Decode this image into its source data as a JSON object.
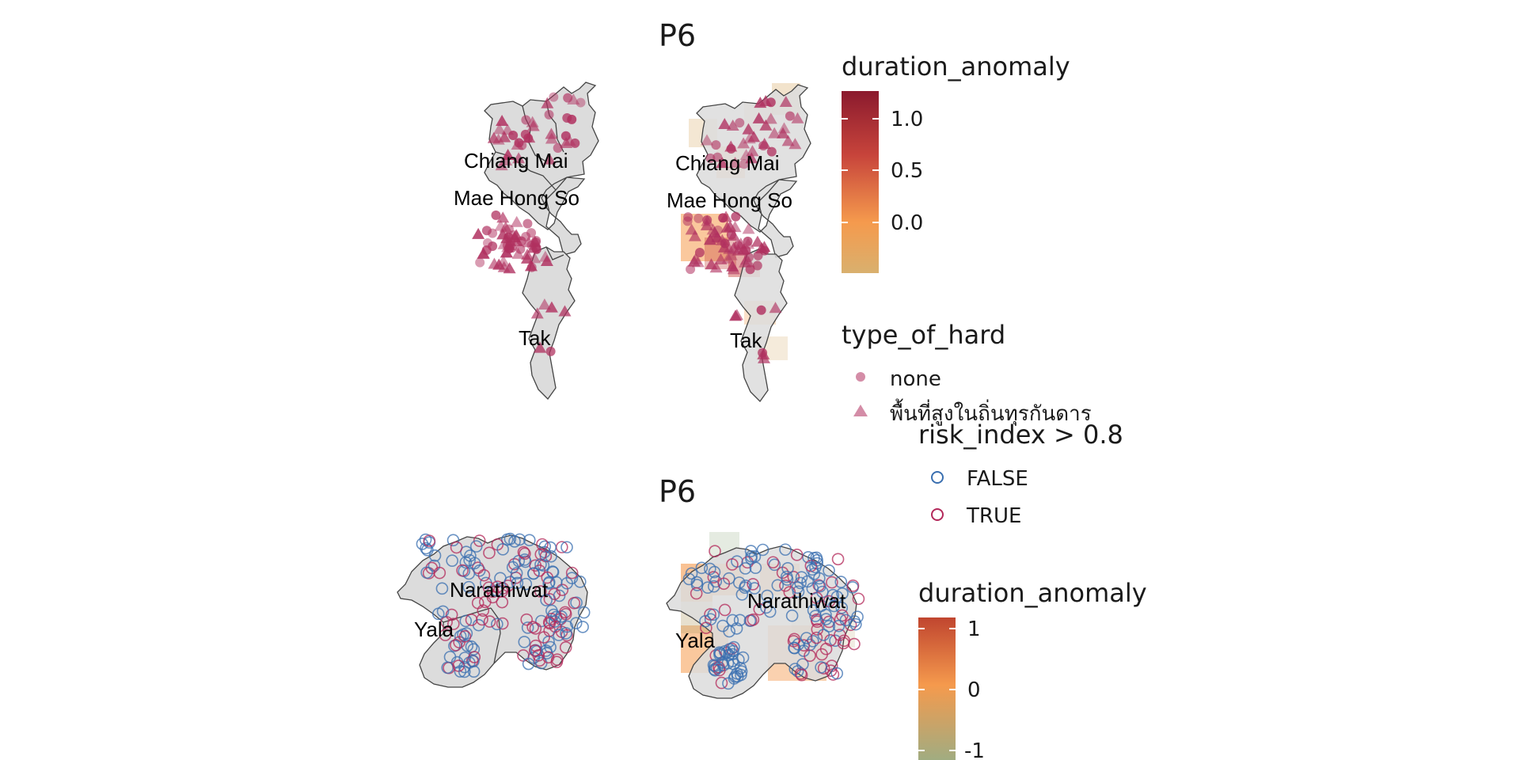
{
  "top_section": {
    "title": "P6",
    "province_labels": [
      "Chiang Mai",
      "Mae Hong So",
      "Tak"
    ],
    "legend_color": {
      "title": "duration_anomaly",
      "ticks": [
        "1.0",
        "0.5",
        "0.0"
      ],
      "colors": [
        "#8b1a2e",
        "#c7443b",
        "#f59a4d",
        "#d9b06e"
      ]
    },
    "legend_shape": {
      "title": "type_of_hard",
      "items": [
        {
          "label": "none",
          "shape": "circle"
        },
        {
          "label": "พื้นที่สูงในถิ่นทุรกันดาร",
          "shape": "triangle"
        }
      ],
      "marker_color": "#b0305f"
    }
  },
  "bottom_section": {
    "title": "P6",
    "province_labels": [
      "Narathiwat",
      "Yala"
    ],
    "legend_risk": {
      "title": "risk_index > 0.8",
      "items": [
        {
          "label": "FALSE",
          "color": "#3a6fb0"
        },
        {
          "label": "TRUE",
          "color": "#b3285a"
        }
      ]
    },
    "legend_color": {
      "title": "duration_anomaly",
      "ticks": [
        "1",
        "0",
        "-1"
      ],
      "colors": [
        "#c0452f",
        "#f59a4d",
        "#b9a772",
        "#98ae86"
      ]
    }
  }
}
